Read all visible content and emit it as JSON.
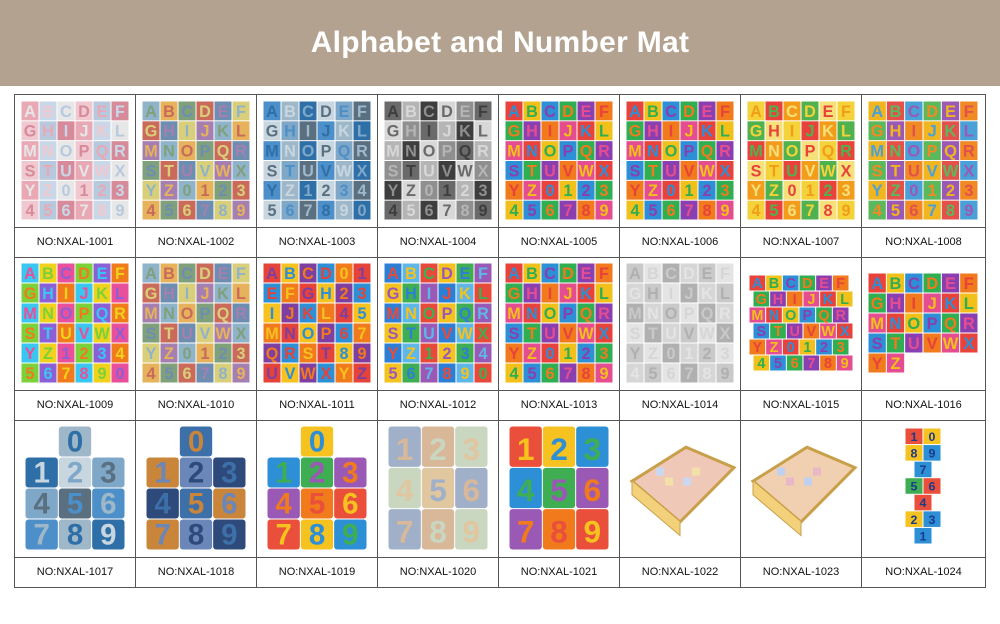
{
  "header": {
    "title": "Alphabet and Number Mat",
    "background_color": "#b3a28f"
  },
  "products": [
    {
      "code": "NO:NXAL-1001",
      "kind": "letters",
      "style": "pastel-pink",
      "rows": [
        "ABCDEF",
        "GHIJKL",
        "MNOPQR",
        "STUVWX",
        "YZ0123",
        "456789"
      ]
    },
    {
      "code": "NO:NXAL-1002",
      "kind": "letters",
      "style": "muted",
      "rows": [
        "ABCDEF",
        "GHIJKL",
        "MNOPQR",
        "STUVWX",
        "YZ0123",
        "456789"
      ]
    },
    {
      "code": "NO:NXAL-1003",
      "kind": "letters",
      "style": "blue-gray",
      "rows": [
        "ABCDEF",
        "GHIJKL",
        "MNOPQR",
        "STUVWX",
        "YZ1234",
        "567890"
      ]
    },
    {
      "code": "NO:NXAL-1004",
      "kind": "letters",
      "style": "gray",
      "rows": [
        "ABCDEF",
        "GHIJKL",
        "MNOPQR",
        "STUVWX",
        "YZ0123",
        "456789"
      ]
    },
    {
      "code": "NO:NXAL-1005",
      "kind": "letters",
      "style": "bright",
      "rows": [
        "ABCDEF",
        "GHIJKL",
        "MNOPQR",
        "STUVWX",
        "YZ0123",
        "456789"
      ]
    },
    {
      "code": "NO:NXAL-1006",
      "kind": "letters",
      "style": "bright",
      "rows": [
        "ABCDEF",
        "GHIJKL",
        "MNOPQR",
        "STUVWX",
        "YZ0123",
        "456789"
      ]
    },
    {
      "code": "NO:NXAL-1007",
      "kind": "letters",
      "style": "yellow-red",
      "rows": [
        "ABCDEF",
        "GHIJKL",
        "MNOPQR",
        "STUVWX",
        "YZ0123",
        "456789"
      ]
    },
    {
      "code": "NO:NXAL-1008",
      "kind": "letters",
      "style": "rainbow",
      "rows": [
        "ABCDEF",
        "GHIJKL",
        "MNOPQR",
        "STUVWX",
        "YZ0123",
        "456789"
      ]
    },
    {
      "code": "NO:NXAL-1009",
      "kind": "letters",
      "style": "neon",
      "rows": [
        "ABCDEF",
        "GHIJKL",
        "MNOPQR",
        "STUVWX",
        "YZ1234",
        "567890"
      ]
    },
    {
      "code": "NO:NXAL-1010",
      "kind": "letters",
      "style": "muted",
      "rows": [
        "ABCDEF",
        "GHIJKL",
        "MNOPQR",
        "STUVWX",
        "YZ0123",
        "456789"
      ]
    },
    {
      "code": "NO:NXAL-1011",
      "kind": "letters",
      "style": "warm",
      "rows": [
        "ABCD01",
        "EFGH23",
        "IJKL45",
        "MNOP67",
        "QRST89",
        "UVWXYZ"
      ]
    },
    {
      "code": "NO:NXAL-1012",
      "kind": "letters",
      "style": "blue-bright",
      "rows": [
        "ABCDEF",
        "GHIJKL",
        "MNOPQR",
        "STUVWX",
        "YZ1234",
        "567890"
      ]
    },
    {
      "code": "NO:NXAL-1013",
      "kind": "letters",
      "style": "bright",
      "rows": [
        "ABCDEF",
        "GHIJKL",
        "MNOPQR",
        "STUVWX",
        "YZ0123",
        "456789"
      ]
    },
    {
      "code": "NO:NXAL-1014",
      "kind": "letters",
      "style": "light-gray",
      "rows": [
        "ABCDEF",
        "GHIJKL",
        "MNOPQR",
        "STUVWX",
        "YZ0123",
        "456789"
      ]
    },
    {
      "code": "NO:NXAL-1015",
      "kind": "letters-persp",
      "style": "bright",
      "rows": [
        "ABCDEF",
        "GHIJKL",
        "MNOPQR",
        "STUVWX",
        "YZ0123",
        "456789"
      ]
    },
    {
      "code": "NO:NXAL-1016",
      "kind": "letters-partial",
      "style": "bright",
      "rows": [
        "ABCDEF",
        "GHIJKL",
        "MNOPQR",
        "STUVWX",
        "YZ"
      ]
    },
    {
      "code": "NO:NXAL-1017",
      "kind": "numbers",
      "style": "blue-gray",
      "rows": [
        "0",
        "123",
        "456",
        "789"
      ]
    },
    {
      "code": "NO:NXAL-1018",
      "kind": "numbers",
      "style": "dark",
      "rows": [
        "0",
        "123",
        "456",
        "789"
      ]
    },
    {
      "code": "NO:NXAL-1019",
      "kind": "numbers",
      "style": "bright-num",
      "rows": [
        "0",
        "123",
        "456",
        "789"
      ]
    },
    {
      "code": "NO:NXAL-1020",
      "kind": "numbers",
      "style": "earth",
      "rows": [
        "123",
        "456",
        "789"
      ]
    },
    {
      "code": "NO:NXAL-1021",
      "kind": "numbers",
      "style": "bright-num",
      "rows": [
        "123",
        "456",
        "789"
      ]
    },
    {
      "code": "NO:NXAL-1022",
      "kind": "playpen",
      "style": "pen",
      "rows": []
    },
    {
      "code": "NO:NXAL-1023",
      "kind": "playpen",
      "style": "pen2",
      "rows": []
    },
    {
      "code": "NO:NXAL-1024",
      "kind": "hopscotch",
      "style": "hop",
      "rows": [
        "10",
        "89",
        "7",
        "56",
        "4",
        "23",
        "1"
      ]
    }
  ]
}
